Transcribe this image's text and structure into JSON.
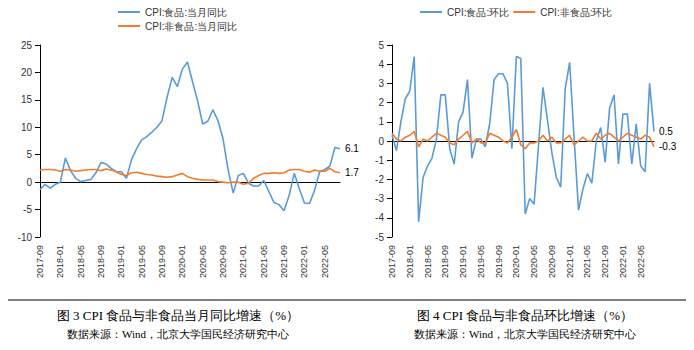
{
  "chart_data": [
    {
      "type": "line",
      "title": "图 3 CPI 食品与非食品当月同比增速（%）",
      "subtitle": "数据来源：Wind，北京大学国民经济研究中心",
      "categories": [
        "2017-09",
        null,
        null,
        null,
        "2018-01",
        null,
        null,
        null,
        "2018-05",
        null,
        null,
        null,
        "2018-09",
        null,
        null,
        null,
        "2019-01",
        null,
        null,
        null,
        "2019-05",
        null,
        null,
        null,
        "2019-09",
        null,
        null,
        null,
        "2020-01",
        null,
        null,
        null,
        "2020-05",
        null,
        null,
        null,
        "2020-09",
        null,
        null,
        null,
        "2021-01",
        null,
        null,
        null,
        "2021-05",
        null,
        null,
        null,
        "2021-09",
        null,
        null,
        null,
        "2022-01",
        null,
        null,
        null,
        "2022-05",
        null,
        null,
        null
      ],
      "series": [
        {
          "name": "CPI:食品:当月同比",
          "color": "#5b9bd5",
          "values": [
            -1.4,
            -0.4,
            -1.1,
            -0.4,
            0.0,
            4.4,
            2.1,
            0.7,
            0.1,
            0.3,
            0.5,
            1.7,
            3.6,
            3.3,
            2.5,
            1.9,
            1.9,
            0.7,
            4.1,
            6.1,
            7.7,
            8.3,
            9.1,
            10.0,
            11.2,
            15.5,
            19.1,
            17.4,
            20.6,
            21.9,
            18.3,
            14.8,
            10.6,
            11.1,
            13.2,
            11.2,
            7.9,
            2.2,
            -2.0,
            1.2,
            1.6,
            -0.2,
            -0.7,
            -0.7,
            0.3,
            -1.7,
            -3.7,
            -4.1,
            -5.2,
            -2.4,
            1.6,
            -1.2,
            -3.8,
            -3.9,
            -1.5,
            1.9,
            2.3,
            2.9,
            6.3,
            6.1
          ],
          "value_labels": [
            null,
            null,
            null,
            null,
            null,
            null,
            null,
            null,
            null,
            null,
            null,
            null,
            null,
            null,
            null,
            null,
            null,
            null,
            null,
            null,
            null,
            null,
            null,
            null,
            null,
            null,
            null,
            null,
            null,
            null,
            null,
            null,
            null,
            null,
            null,
            null,
            null,
            null,
            null,
            null,
            null,
            null,
            null,
            null,
            null,
            null,
            null,
            null,
            null,
            null,
            null,
            null,
            null,
            null,
            null,
            null,
            null,
            null,
            null,
            "6.1"
          ]
        },
        {
          "name": "CPI:非食品:当月同比",
          "color": "#ed7d31",
          "values": [
            2.2,
            2.3,
            2.3,
            2.2,
            2.0,
            2.3,
            2.2,
            2.0,
            2.1,
            2.2,
            2.3,
            2.3,
            2.1,
            2.4,
            2.2,
            1.9,
            1.4,
            1.2,
            1.7,
            1.8,
            1.6,
            1.4,
            1.3,
            1.1,
            1.0,
            0.9,
            1.0,
            1.3,
            1.6,
            1.0,
            0.7,
            0.5,
            0.4,
            0.4,
            0.4,
            0.1,
            0.0,
            -0.1,
            0.0,
            0.0,
            -0.4,
            -0.2,
            0.7,
            1.2,
            1.6,
            1.6,
            1.7,
            1.6,
            1.7,
            2.2,
            2.3,
            2.3,
            2.0,
            1.8,
            2.2,
            2.0,
            2.0,
            2.5,
            1.9,
            1.7
          ],
          "value_labels": [
            null,
            null,
            null,
            null,
            null,
            null,
            null,
            null,
            null,
            null,
            null,
            null,
            null,
            null,
            null,
            null,
            null,
            null,
            null,
            null,
            null,
            null,
            null,
            null,
            null,
            null,
            null,
            null,
            null,
            null,
            null,
            null,
            null,
            null,
            null,
            null,
            null,
            null,
            null,
            null,
            null,
            null,
            null,
            null,
            null,
            null,
            null,
            null,
            null,
            null,
            null,
            null,
            null,
            null,
            null,
            null,
            null,
            null,
            null,
            "1.7"
          ]
        }
      ],
      "ylim": [
        -10,
        25
      ],
      "yticks": [
        -10,
        -5,
        0,
        5,
        10,
        15,
        20,
        25
      ],
      "grid": false,
      "legend": "top"
    },
    {
      "type": "line",
      "title": "图 4 CPI 食品与非食品环比增速（%）",
      "subtitle": "数据来源：Wind，北京大学国民经济研究中心",
      "categories": [
        "2017-09",
        null,
        null,
        null,
        "2018-01",
        null,
        null,
        null,
        "2018-05",
        null,
        null,
        null,
        "2018-09",
        null,
        null,
        null,
        "2019-01",
        null,
        null,
        null,
        "2019-05",
        null,
        null,
        null,
        "2019-09",
        null,
        null,
        null,
        "2020-01",
        null,
        null,
        null,
        "2020-05",
        null,
        null,
        null,
        "2020-09",
        null,
        null,
        null,
        "2021-01",
        null,
        null,
        null,
        "2021-05",
        null,
        null,
        null,
        "2021-09",
        null,
        null,
        null,
        "2022-01",
        null,
        null,
        null,
        "2022-05",
        null,
        null,
        null
      ],
      "series": [
        {
          "name": "CPI:食品:环比",
          "color": "#5b9bd5",
          "values": [
            0.3,
            -0.5,
            1.0,
            2.2,
            2.6,
            4.4,
            -4.2,
            -1.9,
            -1.3,
            -0.9,
            0.1,
            2.4,
            2.4,
            -0.4,
            -1.2,
            1.0,
            1.5,
            3.2,
            -0.9,
            0.1,
            0.1,
            -0.3,
            0.9,
            3.2,
            3.5,
            3.5,
            3.0,
            -0.4,
            4.4,
            4.3,
            -3.8,
            -3.0,
            -3.3,
            -0.2,
            2.8,
            1.1,
            -0.6,
            -1.9,
            -2.4,
            2.7,
            4.1,
            0.2,
            -3.6,
            -2.5,
            -1.7,
            -2.2,
            0.0,
            0.7,
            -1.1,
            1.7,
            2.4,
            -1.2,
            1.4,
            1.4,
            -1.2,
            0.9,
            -1.3,
            -1.6,
            3.0,
            0.5
          ],
          "value_labels": [
            null,
            null,
            null,
            null,
            null,
            null,
            null,
            null,
            null,
            null,
            null,
            null,
            null,
            null,
            null,
            null,
            null,
            null,
            null,
            null,
            null,
            null,
            null,
            null,
            null,
            null,
            null,
            null,
            null,
            null,
            null,
            null,
            null,
            null,
            null,
            null,
            null,
            null,
            null,
            null,
            null,
            null,
            null,
            null,
            null,
            null,
            null,
            null,
            null,
            null,
            null,
            null,
            null,
            null,
            null,
            null,
            null,
            null,
            null,
            "0.5"
          ]
        },
        {
          "name": "CPI:非食品:环比",
          "color": "#ed7d31",
          "values": [
            0.4,
            0.1,
            0.0,
            0.2,
            0.3,
            0.5,
            -0.3,
            0.1,
            0.0,
            0.2,
            0.4,
            0.3,
            0.2,
            -0.1,
            -0.2,
            0.1,
            0.3,
            0.5,
            -0.1,
            0.1,
            -0.1,
            -0.1,
            0.4,
            0.3,
            0.2,
            0.0,
            -0.1,
            0.2,
            0.6,
            -0.2,
            -0.4,
            -0.1,
            -0.1,
            0.0,
            0.3,
            0.0,
            0.2,
            -0.1,
            -0.1,
            0.1,
            0.3,
            -0.2,
            0.0,
            0.2,
            0.0,
            0.0,
            0.4,
            0.1,
            0.3,
            0.4,
            0.2,
            0.0,
            0.2,
            0.4,
            0.3,
            0.2,
            0.1,
            0.3,
            0.2,
            -0.3
          ],
          "value_labels": [
            null,
            null,
            null,
            null,
            null,
            null,
            null,
            null,
            null,
            null,
            null,
            null,
            null,
            null,
            null,
            null,
            null,
            null,
            null,
            null,
            null,
            null,
            null,
            null,
            null,
            null,
            null,
            null,
            null,
            null,
            null,
            null,
            null,
            null,
            null,
            null,
            null,
            null,
            null,
            null,
            null,
            null,
            null,
            null,
            null,
            null,
            null,
            null,
            null,
            null,
            null,
            null,
            null,
            null,
            null,
            null,
            null,
            null,
            null,
            "-0.3"
          ]
        }
      ],
      "ylim": [
        -5,
        5
      ],
      "yticks": [
        -5,
        -4,
        -3,
        -2,
        -1,
        0,
        1,
        2,
        3,
        4,
        5
      ],
      "grid": false,
      "legend": "top"
    }
  ]
}
